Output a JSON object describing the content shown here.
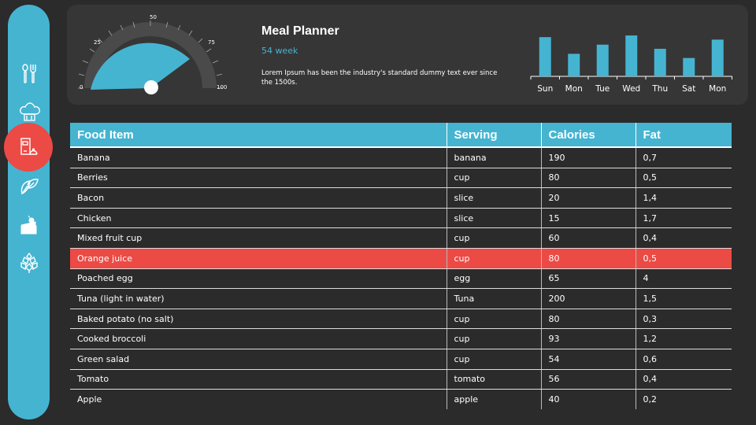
{
  "sidebar": {
    "items": [
      {
        "icon": "utensils-icon",
        "active": false
      },
      {
        "icon": "chef-hat-icon",
        "active": false
      },
      {
        "icon": "menu-dish-icon",
        "active": true
      },
      {
        "icon": "leaf-icon",
        "active": false
      },
      {
        "icon": "cake-icon",
        "active": false
      },
      {
        "icon": "hops-icon",
        "active": false
      }
    ],
    "accent": "#45b4d1",
    "active_color": "#ec4a45"
  },
  "header": {
    "title": "Meal Planner",
    "subtitle": "54 week",
    "description": "Lorem Ipsum has been the industry's standard dummy text ever since the 1500s."
  },
  "gauge": {
    "value": 73,
    "min": 0,
    "max": 100,
    "labels": [
      "0",
      "25",
      "50",
      "75",
      "100"
    ]
  },
  "chart_data": {
    "type": "bar",
    "title": "",
    "categories": [
      "Sun",
      "Mon",
      "Tue",
      "Wed",
      "Thu",
      "Sat",
      "Mon"
    ],
    "values": [
      47,
      27,
      38,
      49,
      33,
      22,
      44
    ],
    "xlabel": "",
    "ylabel": "",
    "ylim": [
      0,
      50
    ],
    "grid": false,
    "color": "#45b4d1"
  },
  "table": {
    "headers": [
      "Food Item",
      "Serving",
      "Calories",
      "Fat"
    ],
    "rows": [
      [
        "Banana",
        "banana",
        "190",
        "0,7"
      ],
      [
        "Berries",
        "cup",
        "80",
        "0,5"
      ],
      [
        "Bacon",
        "slice",
        "20",
        "1,4"
      ],
      [
        "Chicken",
        "slice",
        "15",
        "1,7"
      ],
      [
        "Mixed fruit cup",
        "cup",
        "60",
        "0,4"
      ],
      [
        "Orange juice",
        "cup",
        "80",
        "0,5"
      ],
      [
        "Poached egg",
        "egg",
        "65",
        "4"
      ],
      [
        "Tuna (light in water)",
        "Tuna",
        "200",
        "1,5"
      ],
      [
        "Baked potato (no salt)",
        "cup",
        "80",
        "0,3"
      ],
      [
        "Cooked broccoli",
        "cup",
        "93",
        "1,2"
      ],
      [
        "Green salad",
        "cup",
        "54",
        "0,6"
      ],
      [
        "Tomato",
        "tomato",
        "56",
        "0,4"
      ],
      [
        "Apple",
        "apple",
        "40",
        "0,2"
      ]
    ],
    "highlighted_row": 5
  }
}
